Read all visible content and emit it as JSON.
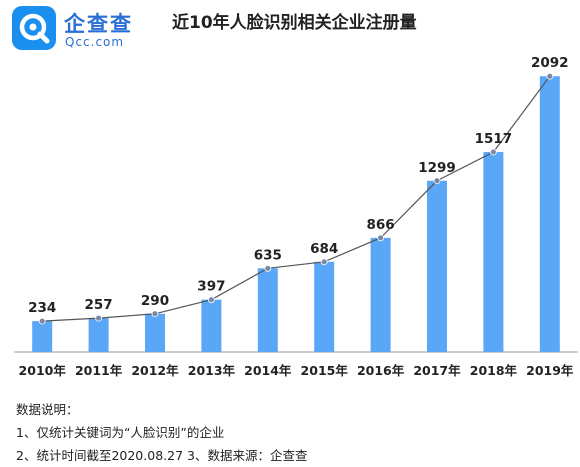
{
  "brand": {
    "name": "企查查",
    "domain": "Qcc.com",
    "icon": "qcc-logo-icon",
    "color": "#1a8ff0"
  },
  "colors": {
    "bar": "#5aa7f7",
    "line": "#555555"
  },
  "chart_data": {
    "type": "bar",
    "title": "近10年人脸识别相关企业注册量",
    "categories": [
      "2010年",
      "2011年",
      "2012年",
      "2013年",
      "2014年",
      "2015年",
      "2016年",
      "2017年",
      "2018年",
      "2019年"
    ],
    "series": [
      {
        "values": [
          234,
          257,
          290,
          397,
          635,
          684,
          866,
          1299,
          1517,
          2092
        ]
      }
    ],
    "overlay": "line-through-bar-tops",
    "xlabel": "",
    "ylabel": "",
    "ylim": [
      0,
      2200
    ],
    "grid": false,
    "legend": "none"
  },
  "notes": {
    "heading": "数据说明：",
    "line1": "1、仅统计关键词为“人脸识别”的企业",
    "line2": "2、统计时间截至2020.08.27   3、数据来源：企查查"
  }
}
